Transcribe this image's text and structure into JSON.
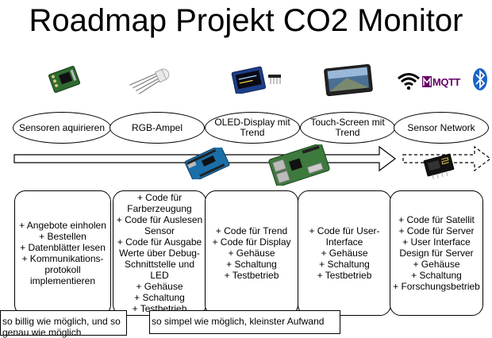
{
  "title": "Roadmap Projekt CO2 Monitor",
  "colors": {
    "line": "#000000",
    "background": "#ffffff",
    "pcb_green": "#2e6b2f",
    "arduino_blue": "#1b6fa8",
    "oled_blue": "#1c3f8a",
    "raspberry_green": "#3d7a3d",
    "mqtt_purple": "#660066",
    "bluetooth_blue": "#1a63c6"
  },
  "stages": [
    {
      "label": "Sensoren aquirieren",
      "icon": "sensor-module-icon",
      "items": [
        "+ Angebote einholen",
        "+ Bestellen",
        "+ Datenblätter lesen",
        "+ Kommunikations-protokoll implementieren"
      ]
    },
    {
      "label": "RGB-Ampel",
      "icon": "rgb-led-icon",
      "items": [
        "+ Code für Farberzeugung",
        "+ Code für Auslesen Sensor",
        "+ Code für Ausgabe Werte über Debug-Schnittstelle und LED",
        "+ Gehäuse",
        "+ Schaltung",
        "+ Testbetrieb"
      ]
    },
    {
      "label": "OLED-Display mit Trend",
      "icon": "oled-display-icon",
      "items": [
        "+ Code für Trend",
        "+ Code für Display",
        "+ Gehäuse",
        "+ Schaltung",
        "+ Testbetrieb"
      ]
    },
    {
      "label": "Touch-Screen mit Trend",
      "icon": "touchscreen-icon",
      "items": [
        "+ Code für User-Interface",
        "+ Gehäuse",
        "+ Schaltung",
        "+ Testbetrieb"
      ]
    },
    {
      "label": "Sensor Network",
      "icon": "network-icons",
      "items": [
        "+ Code für Satellit",
        "+ Code für Server",
        "+ User Interface Design für Server",
        "+ Gehäuse",
        "+ Schaltung",
        "+ Forschungsbetrieb"
      ]
    }
  ],
  "network_logo_text": "MQTT",
  "notes": [
    {
      "text": "so billig wie möglich, und so genau wie möglich"
    },
    {
      "text": "so simpel wie möglich, kleinster Aufwand"
    }
  ]
}
